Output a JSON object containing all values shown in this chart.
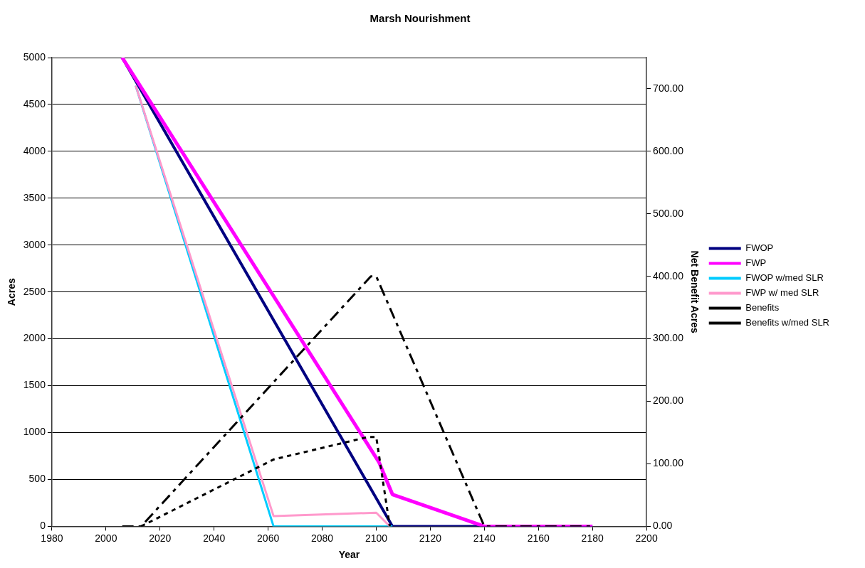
{
  "chart_data": {
    "type": "line",
    "title": "Marsh Nourishment",
    "xlabel": "Year",
    "ylabel": "Acres",
    "y2label": "Net Benefit Acres",
    "xlim": [
      1980,
      2200
    ],
    "xticks": [
      1980,
      2000,
      2020,
      2040,
      2060,
      2080,
      2100,
      2120,
      2140,
      2160,
      2180,
      2200
    ],
    "ylim": [
      0,
      5000
    ],
    "yticks": [
      0,
      500,
      1000,
      1500,
      2000,
      2500,
      3000,
      3500,
      4000,
      4500,
      5000
    ],
    "y2lim": [
      0,
      750
    ],
    "y2ticks": [
      {
        "value": 0,
        "label": "0.00"
      },
      {
        "value": 100,
        "label": "100.00"
      },
      {
        "value": 200,
        "label": "200.00"
      },
      {
        "value": 300,
        "label": "300.00"
      },
      {
        "value": 400,
        "label": "400.00"
      },
      {
        "value": 500,
        "label": "500.00"
      },
      {
        "value": 600,
        "label": "600.00"
      },
      {
        "value": 700,
        "label": "700.00"
      }
    ],
    "grid": "y",
    "legend": "right",
    "marker": "none",
    "series": [
      {
        "name": "FWOP",
        "color": "#000080",
        "line_style": "solid",
        "x": [
          2006,
          2106,
          2140,
          2180
        ],
        "values": [
          5000,
          0,
          0,
          0
        ]
      },
      {
        "name": "FWP",
        "color": "#ff00ff",
        "line_style": "solid",
        "x": [
          2006,
          2101,
          2106,
          2140,
          2180
        ],
        "values": [
          5000,
          685,
          340,
          0,
          0
        ]
      },
      {
        "name": "FWOP w/med SLR",
        "color": "#00ccff",
        "line_style": "solid",
        "x": [
          2011,
          2062,
          2106
        ],
        "values": [
          4700,
          0,
          0
        ]
      },
      {
        "name": "FWP w/ med SLR",
        "color": "#ff99cc",
        "line_style": "solid",
        "x": [
          2011,
          2062,
          2100,
          2105
        ],
        "values": [
          4700,
          110,
          145,
          0
        ]
      },
      {
        "name": "Benefits",
        "color": "#000000",
        "line_style": "dashed",
        "axis": "y2",
        "x": [
          2006,
          2013,
          2098,
          2100,
          2140,
          2180
        ],
        "values": [
          0,
          0,
          400,
          400,
          0,
          0
        ]
      },
      {
        "name": "Benefits w/med SLR",
        "color": "#000000",
        "line_style": "dotted",
        "axis": "y2",
        "x": [
          2013,
          2062,
          2097,
          2100,
          2105
        ],
        "values": [
          0,
          107,
          143,
          143,
          0
        ]
      }
    ]
  }
}
